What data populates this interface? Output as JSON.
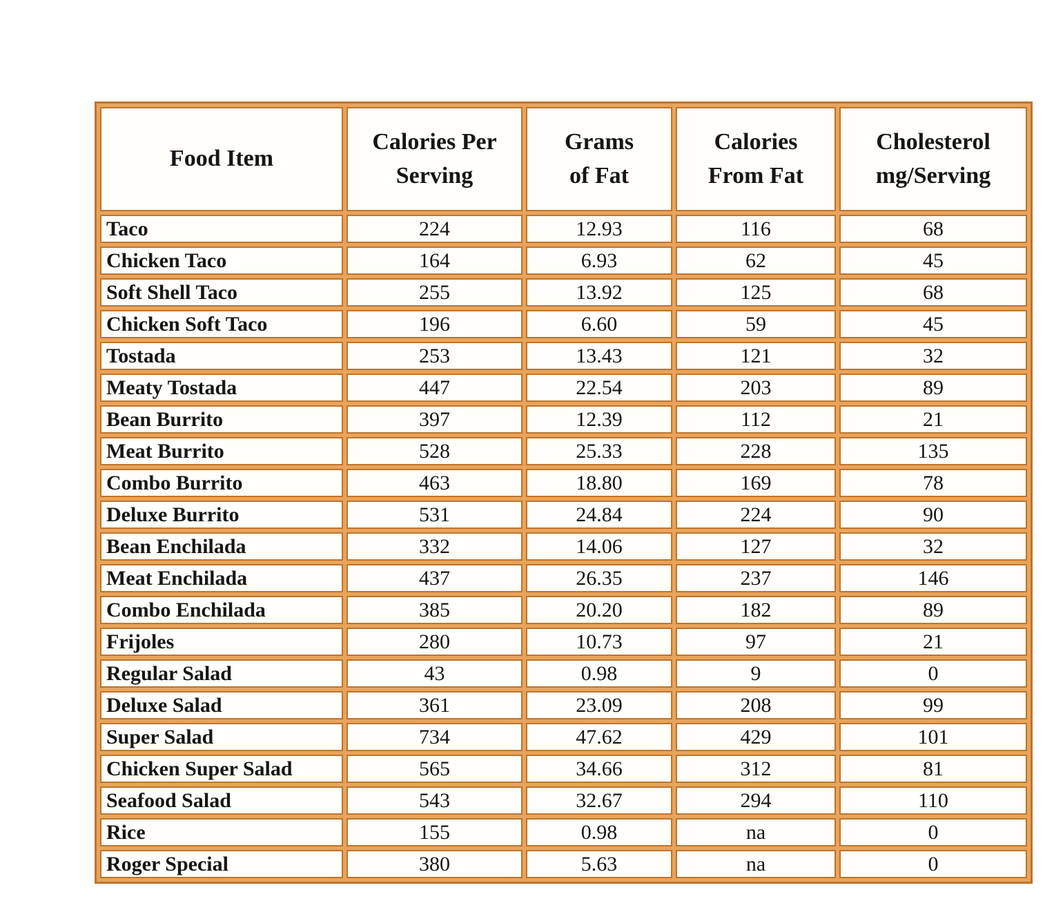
{
  "page": {
    "background": "#ffffff"
  },
  "theme": {
    "border_dark": "#be742c",
    "border_light": "#e9a45b",
    "cell_background": "#fffefa",
    "text_color": "#161616"
  },
  "table": {
    "columns": [
      {
        "key": "food-item",
        "label": "Food Item"
      },
      {
        "key": "calories-per-serving",
        "label": "Calories Per\nServing"
      },
      {
        "key": "grams-of-fat",
        "label": "Grams\nof Fat"
      },
      {
        "key": "calories-from-fat",
        "label": "Calories\nFrom Fat"
      },
      {
        "key": "cholesterol-mg-per-serving",
        "label": "Cholesterol\nmg/Serving"
      }
    ],
    "rows": [
      [
        "Taco",
        "224",
        "12.93",
        "116",
        "68"
      ],
      [
        "Chicken Taco",
        "164",
        "6.93",
        "62",
        "45"
      ],
      [
        "Soft Shell Taco",
        "255",
        "13.92",
        "125",
        "68"
      ],
      [
        "Chicken Soft Taco",
        "196",
        "6.60",
        "59",
        "45"
      ],
      [
        "Tostada",
        "253",
        "13.43",
        "121",
        "32"
      ],
      [
        "Meaty Tostada",
        "447",
        "22.54",
        "203",
        "89"
      ],
      [
        "Bean Burrito",
        "397",
        "12.39",
        "112",
        "21"
      ],
      [
        "Meat Burrito",
        "528",
        "25.33",
        "228",
        "135"
      ],
      [
        "Combo Burrito",
        "463",
        "18.80",
        "169",
        "78"
      ],
      [
        "Deluxe Burrito",
        "531",
        "24.84",
        "224",
        "90"
      ],
      [
        "Bean Enchilada",
        "332",
        "14.06",
        "127",
        "32"
      ],
      [
        "Meat Enchilada",
        "437",
        "26.35",
        "237",
        "146"
      ],
      [
        "Combo Enchilada",
        "385",
        "20.20",
        "182",
        "89"
      ],
      [
        "Frijoles",
        "280",
        "10.73",
        "97",
        "21"
      ],
      [
        "Regular Salad",
        "43",
        "0.98",
        "9",
        "0"
      ],
      [
        "Deluxe Salad",
        "361",
        "23.09",
        "208",
        "99"
      ],
      [
        "Super Salad",
        "734",
        "47.62",
        "429",
        "101"
      ],
      [
        "Chicken Super Salad",
        "565",
        "34.66",
        "312",
        "81"
      ],
      [
        "Seafood Salad",
        "543",
        "32.67",
        "294",
        "110"
      ],
      [
        "Rice",
        "155",
        "0.98",
        "na",
        "0"
      ],
      [
        "Roger Special",
        "380",
        "5.63",
        "na",
        "0"
      ]
    ]
  },
  "chart_data": {
    "type": "table",
    "columns": [
      "Food Item",
      "Calories Per Serving",
      "Grams of Fat",
      "Calories From Fat",
      "Cholesterol mg/Serving"
    ],
    "rows": [
      [
        "Taco",
        224,
        12.93,
        116,
        68
      ],
      [
        "Chicken Taco",
        164,
        6.93,
        62,
        45
      ],
      [
        "Soft Shell Taco",
        255,
        13.92,
        125,
        68
      ],
      [
        "Chicken Soft Taco",
        196,
        6.6,
        59,
        45
      ],
      [
        "Tostada",
        253,
        13.43,
        121,
        32
      ],
      [
        "Meaty Tostada",
        447,
        22.54,
        203,
        89
      ],
      [
        "Bean Burrito",
        397,
        12.39,
        112,
        21
      ],
      [
        "Meat Burrito",
        528,
        25.33,
        228,
        135
      ],
      [
        "Combo Burrito",
        463,
        18.8,
        169,
        78
      ],
      [
        "Deluxe Burrito",
        531,
        24.84,
        224,
        90
      ],
      [
        "Bean Enchilada",
        332,
        14.06,
        127,
        32
      ],
      [
        "Meat Enchilada",
        437,
        26.35,
        237,
        146
      ],
      [
        "Combo Enchilada",
        385,
        20.2,
        182,
        89
      ],
      [
        "Frijoles",
        280,
        10.73,
        97,
        21
      ],
      [
        "Regular Salad",
        43,
        0.98,
        9,
        0
      ],
      [
        "Deluxe Salad",
        361,
        23.09,
        208,
        99
      ],
      [
        "Super Salad",
        734,
        47.62,
        429,
        101
      ],
      [
        "Chicken Super Salad",
        565,
        34.66,
        312,
        81
      ],
      [
        "Seafood Salad",
        543,
        32.67,
        294,
        110
      ],
      [
        "Rice",
        155,
        0.98,
        "na",
        0
      ],
      [
        "Roger Special",
        380,
        5.63,
        "na",
        0
      ]
    ]
  }
}
